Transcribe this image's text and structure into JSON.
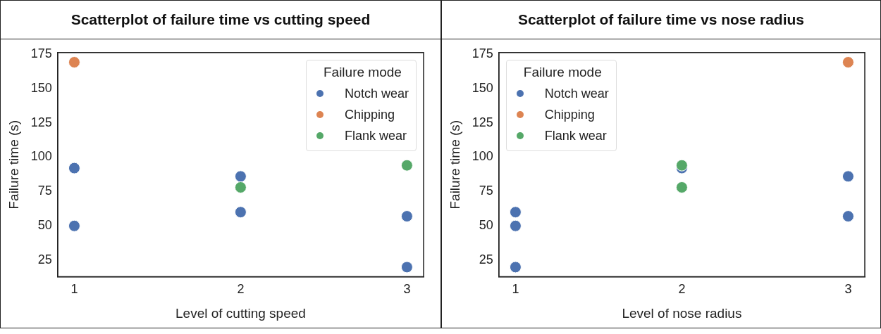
{
  "chart_data": [
    {
      "type": "scatter",
      "title": "Scatterplot of failure time vs cutting speed",
      "xlabel": "Level of cutting speed",
      "ylabel": "Failure time (s)",
      "legend_title": "Failure mode",
      "legend": "top right",
      "marker": "circle",
      "grid": false,
      "xlim": [
        0.9,
        3.1
      ],
      "xticks": [
        1,
        2,
        3
      ],
      "ylim": [
        13,
        176
      ],
      "yticks": [
        25,
        50,
        75,
        100,
        125,
        150,
        175
      ],
      "series": [
        {
          "name": "Notch wear",
          "color": "#4c72b0",
          "x": [
            1,
            1,
            2,
            2,
            3,
            3
          ],
          "values": [
            92,
            50,
            86,
            60,
            57,
            20
          ]
        },
        {
          "name": "Chipping",
          "color": "#dd8452",
          "x": [
            1
          ],
          "values": [
            169
          ]
        },
        {
          "name": "Flank wear",
          "color": "#55a868",
          "x": [
            2,
            3
          ],
          "values": [
            78,
            94
          ]
        }
      ]
    },
    {
      "type": "scatter",
      "title": "Scatterplot of failure time vs nose radius",
      "xlabel": "Level of nose radius",
      "ylabel": "Failure time (s)",
      "legend_title": "Failure mode",
      "legend": "top left",
      "marker": "circle",
      "grid": false,
      "xlim": [
        0.9,
        3.1
      ],
      "xticks": [
        1,
        2,
        3
      ],
      "ylim": [
        13,
        176
      ],
      "yticks": [
        25,
        50,
        75,
        100,
        125,
        150,
        175
      ],
      "series": [
        {
          "name": "Notch wear",
          "color": "#4c72b0",
          "x": [
            1,
            1,
            1,
            2,
            3,
            3
          ],
          "values": [
            60,
            50,
            20,
            92,
            86,
            57
          ]
        },
        {
          "name": "Chipping",
          "color": "#dd8452",
          "x": [
            3
          ],
          "values": [
            169
          ]
        },
        {
          "name": "Flank wear",
          "color": "#55a868",
          "x": [
            2,
            2
          ],
          "values": [
            94,
            78
          ]
        }
      ]
    }
  ]
}
